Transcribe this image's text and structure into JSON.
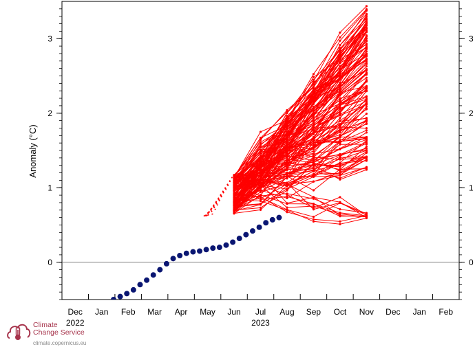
{
  "chart_data": {
    "type": "line",
    "ylabel": "Anomaly (°C)",
    "ylim": [
      -0.5,
      3.5
    ],
    "yticks": [
      0,
      1,
      2,
      3
    ],
    "y_minor_step": 0.1,
    "x_month_labels": [
      "Dec",
      "Jan",
      "Feb",
      "Mar",
      "Apr",
      "May",
      "Jun",
      "Jul",
      "Aug",
      "Sep",
      "Oct",
      "Nov",
      "Dec",
      "Jan",
      "Feb"
    ],
    "x_year_labels": [
      {
        "label": "2022",
        "month_index": 0
      },
      {
        "label": "2023",
        "month_index": 7
      }
    ],
    "zero_line": true,
    "observed": {
      "color": "#0a1672",
      "start_month_index": 1.7,
      "step_months": 0.25,
      "values": [
        -0.55,
        -0.5,
        -0.46,
        -0.42,
        -0.37,
        -0.3,
        -0.24,
        -0.17,
        -0.1,
        -0.02,
        0.05,
        0.09,
        0.12,
        0.14,
        0.15,
        0.17,
        0.19,
        0.2,
        0.23,
        0.27,
        0.32,
        0.37,
        0.42,
        0.47,
        0.53,
        0.57,
        0.6
      ]
    },
    "forecast": {
      "color": "#ff0000",
      "start_value": 0.62,
      "start_month_index": 5.35,
      "init_month_index": 6.5,
      "member_months": [
        6.5,
        7.5,
        8.5,
        9.5,
        10.5,
        11.5
      ],
      "init_range": [
        0.65,
        1.18
      ],
      "final_range": [
        0.44,
        3.47
      ],
      "member_count": 150
    }
  },
  "logo": {
    "line1": "Climate",
    "line2": "Change Service",
    "url": "climate.copernicus.eu"
  }
}
